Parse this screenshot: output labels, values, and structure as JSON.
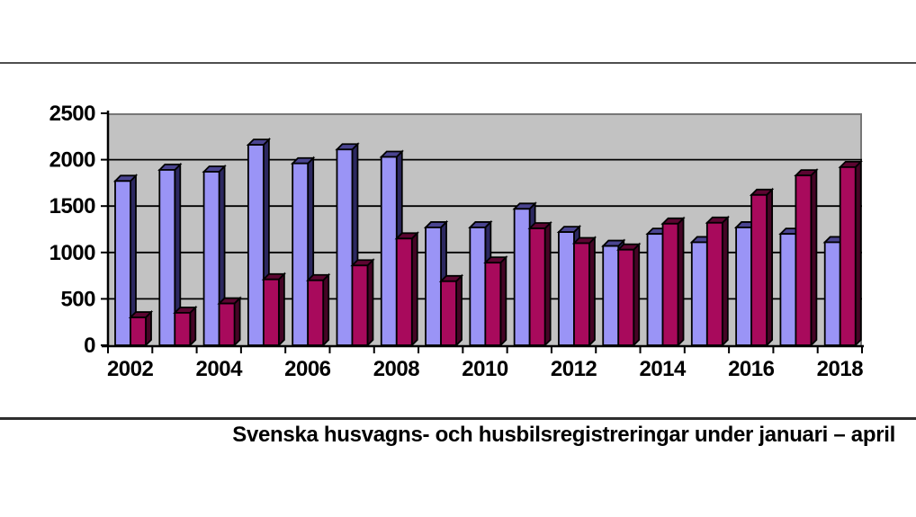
{
  "page": {
    "background": "#FFFFFF",
    "top_rule_color": "#4F4F4F",
    "caption_rule_color": "#2E2E2E"
  },
  "chart_data": {
    "type": "bar",
    "title": "Svenska husvagns- och husbilsregistreringar under januari – april",
    "categories": [
      "2002",
      "2003",
      "2004",
      "2005",
      "2006",
      "2007",
      "2008",
      "2009",
      "2010",
      "2011",
      "2012",
      "2013",
      "2014",
      "2015",
      "2016",
      "2017",
      "2018"
    ],
    "x_tick_labels": [
      "2002",
      "2004",
      "2006",
      "2008",
      "2010",
      "2012",
      "2014",
      "2016",
      "2018"
    ],
    "y_ticks": [
      0,
      500,
      1000,
      1500,
      2000,
      2500
    ],
    "ylim": [
      0,
      2500
    ],
    "grid": "horizontal",
    "legend": "none",
    "plot_background": "#C2C2C2",
    "gridline_color": "#000000",
    "axis_color": "#000000",
    "border_color": "#777777",
    "series": [
      {
        "key": "blue-bars",
        "color": "#9A94F6",
        "color_top": "#4A4490",
        "color_side": "#2C2860",
        "values": [
          1770,
          1890,
          1870,
          2160,
          1960,
          2110,
          2030,
          1270,
          1270,
          1470,
          1220,
          1070,
          1200,
          1110,
          1270,
          1200,
          1110
        ]
      },
      {
        "key": "magenta-bars",
        "color": "#A80A5C",
        "color_top": "#5C0531",
        "color_side": "#450425",
        "values": [
          300,
          350,
          450,
          710,
          700,
          860,
          1150,
          690,
          890,
          1260,
          1100,
          1030,
          1310,
          1320,
          1620,
          1830,
          1920
        ]
      }
    ]
  }
}
